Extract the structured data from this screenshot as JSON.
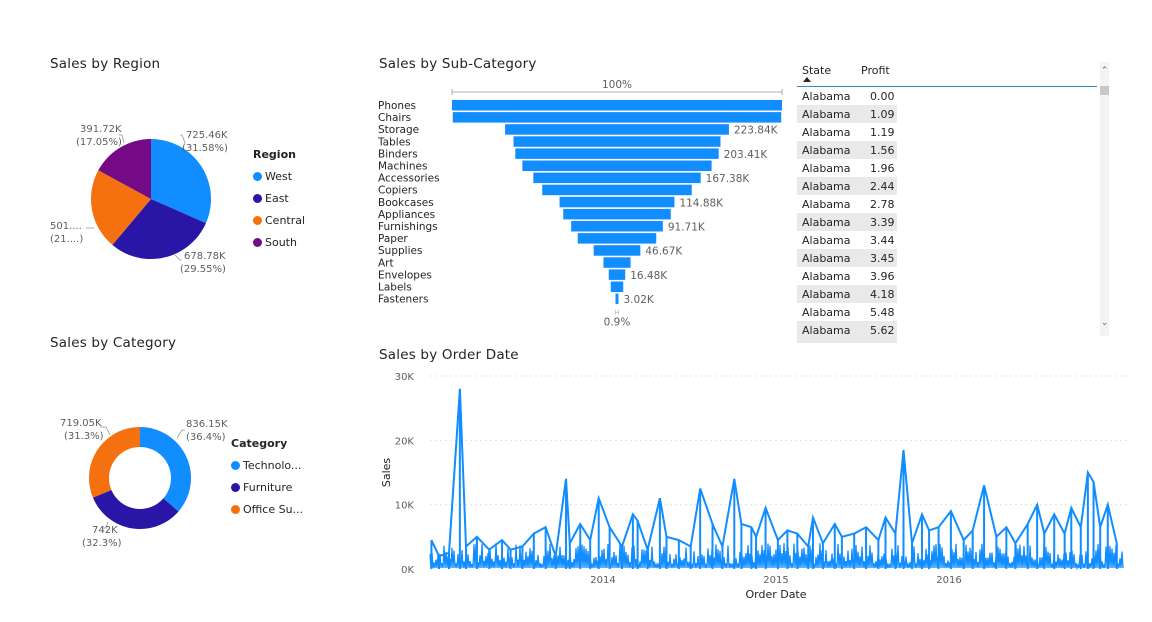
{
  "visuals": {
    "region": {
      "title": "Sales by Region"
    },
    "subcategory": {
      "title": "Sales by Sub-Category"
    },
    "category": {
      "title": "Sales by Category"
    },
    "orderdate": {
      "title": "Sales by Order Date"
    }
  },
  "colors": {
    "west": "#118dff",
    "east": "#2a16a6",
    "central": "#f5700f",
    "south": "#740a86",
    "bar": "#118dff"
  },
  "region_pie": {
    "legend_title": "Region",
    "legend": [
      "West",
      "East",
      "Central",
      "South"
    ],
    "labels": [
      {
        "value": "725.46K",
        "pct": "(31.58%)"
      },
      {
        "value": "678.78K",
        "pct": "(29.55%)"
      },
      {
        "value": "501....",
        "pct": "(21....)"
      },
      {
        "value": "391.72K",
        "pct": "(17.05%)"
      }
    ]
  },
  "category_donut": {
    "legend_title": "Category",
    "legend": [
      "Technolo...",
      "Furniture",
      "Office Su..."
    ],
    "labels": [
      {
        "value": "836.15K",
        "pct": "(36.4%)"
      },
      {
        "value": "742K",
        "pct": "(32.3%)"
      },
      {
        "value": "719.05K",
        "pct": "(31.3%)"
      }
    ]
  },
  "funnel": {
    "top_label": "100%",
    "bottom_label": "0.9%"
  },
  "table": {
    "columns": [
      "State",
      "Profit"
    ],
    "rows": [
      {
        "state": "Alabama",
        "profit": "0.00"
      },
      {
        "state": "Alabama",
        "profit": "1.09"
      },
      {
        "state": "Alabama",
        "profit": "1.19"
      },
      {
        "state": "Alabama",
        "profit": "1.56"
      },
      {
        "state": "Alabama",
        "profit": "1.96"
      },
      {
        "state": "Alabama",
        "profit": "2.44"
      },
      {
        "state": "Alabama",
        "profit": "2.78"
      },
      {
        "state": "Alabama",
        "profit": "3.39"
      },
      {
        "state": "Alabama",
        "profit": "3.44"
      },
      {
        "state": "Alabama",
        "profit": "3.45"
      },
      {
        "state": "Alabama",
        "profit": "3.96"
      },
      {
        "state": "Alabama",
        "profit": "4.18"
      },
      {
        "state": "Alabama",
        "profit": "5.48"
      },
      {
        "state": "Alabama",
        "profit": "5.62"
      }
    ]
  },
  "chart_data": [
    {
      "type": "pie",
      "title": "Sales by Region",
      "legend_title": "Region",
      "categories": [
        "West",
        "East",
        "Central",
        "South"
      ],
      "values": [
        725.46,
        678.78,
        501.24,
        391.72
      ],
      "percentages": [
        31.58,
        29.55,
        21.82,
        17.05
      ],
      "units": "K"
    },
    {
      "type": "pie",
      "subtype": "donut",
      "title": "Sales by Category",
      "legend_title": "Category",
      "categories": [
        "Technolo...",
        "Furniture",
        "Office Su..."
      ],
      "values": [
        836.15,
        742,
        719.05
      ],
      "percentages": [
        36.4,
        32.3,
        31.3
      ],
      "units": "K"
    },
    {
      "type": "bar",
      "subtype": "funnel",
      "title": "Sales by Sub-Category",
      "categories": [
        "Phones",
        "Chairs",
        "Storage",
        "Tables",
        "Binders",
        "Machines",
        "Accessories",
        "Copiers",
        "Bookcases",
        "Appliances",
        "Furnishings",
        "Paper",
        "Supplies",
        "Art",
        "Envelopes",
        "Labels",
        "Fasteners"
      ],
      "values": [
        330.01,
        328.45,
        223.84,
        206.97,
        203.41,
        189.24,
        167.38,
        149.53,
        114.88,
        107.53,
        91.71,
        78.48,
        46.67,
        27.12,
        16.48,
        12.49,
        3.02
      ],
      "value_labels": [
        "",
        "",
        "223.84K",
        "",
        "203.41K",
        "",
        "167.38K",
        "",
        "114.88K",
        "",
        "91.71K",
        "",
        "46.67K",
        "",
        "16.48K",
        "",
        "3.02K"
      ],
      "top_label": "100%",
      "bottom_label": "0.9%"
    },
    {
      "type": "line",
      "title": "Sales by Order Date",
      "xlabel": "Order Date",
      "ylabel": "Sales",
      "ylim": [
        0,
        30000
      ],
      "yticks": [
        "0K",
        "10K",
        "20K",
        "30K"
      ],
      "xticks": [
        "2014",
        "2015",
        "2016"
      ],
      "xlim": [
        "2013-01-01",
        "2016-12-31"
      ],
      "grid": true,
      "series": [
        {
          "x": [
            "2013-01-04",
            "2013-01-20",
            "2013-02-10",
            "2013-03-05",
            "2013-03-18",
            "2013-04-10",
            "2013-05-06",
            "2013-06-02",
            "2013-06-20",
            "2013-07-15",
            "2013-08-08",
            "2013-09-02",
            "2013-09-23",
            "2013-10-15",
            "2013-10-23",
            "2013-11-14",
            "2013-12-05",
            "2013-12-23",
            "2014-01-15",
            "2014-02-10",
            "2014-03-05",
            "2014-03-15",
            "2014-04-05",
            "2014-05-01",
            "2014-05-15",
            "2014-06-10",
            "2014-07-05",
            "2014-07-25",
            "2014-08-20",
            "2014-09-10",
            "2014-10-05",
            "2014-10-20",
            "2014-11-10",
            "2014-11-20",
            "2014-12-10",
            "2015-01-05",
            "2015-01-25",
            "2015-02-15",
            "2015-03-10",
            "2015-03-20",
            "2015-04-10",
            "2015-05-05",
            "2015-05-20",
            "2015-06-15",
            "2015-07-10",
            "2015-08-05",
            "2015-08-20",
            "2015-09-10",
            "2015-09-27",
            "2015-10-15",
            "2015-11-05",
            "2015-11-20",
            "2015-12-10",
            "2016-01-05",
            "2016-02-01",
            "2016-02-20",
            "2016-03-15",
            "2016-04-10",
            "2016-05-01",
            "2016-05-20",
            "2016-06-15",
            "2016-07-05",
            "2016-07-20",
            "2016-08-10",
            "2016-09-01",
            "2016-09-15",
            "2016-10-05",
            "2016-10-20",
            "2016-11-01",
            "2016-11-15",
            "2016-12-01",
            "2016-12-20"
          ],
          "y": [
            4500,
            2000,
            2500,
            28000,
            3500,
            5000,
            3000,
            4500,
            3000,
            3500,
            5500,
            6500,
            2000,
            14000,
            4000,
            7000,
            4500,
            11000,
            6500,
            3500,
            8500,
            7500,
            3000,
            11000,
            5000,
            4500,
            3500,
            12500,
            7000,
            3500,
            14000,
            7000,
            6500,
            5000,
            9500,
            4500,
            6000,
            5500,
            3500,
            8000,
            4000,
            7000,
            5000,
            5500,
            6500,
            4500,
            8000,
            5500,
            18500,
            4000,
            8500,
            6000,
            6500,
            9000,
            4500,
            6000,
            13000,
            5000,
            6500,
            4000,
            7000,
            10000,
            5500,
            8500,
            5500,
            9500,
            6500,
            15000,
            13500,
            6500,
            10000,
            4000
          ]
        }
      ]
    }
  ]
}
